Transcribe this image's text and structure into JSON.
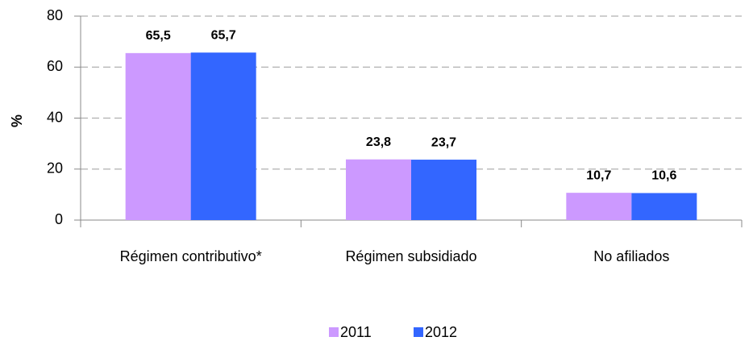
{
  "chart_data": {
    "type": "bar",
    "categories": [
      "Régimen contributivo*",
      "Régimen subsidiado",
      "No afiliados"
    ],
    "series": [
      {
        "name": "2011",
        "color": "#cc99ff",
        "values": [
          65.5,
          23.8,
          10.7
        ],
        "value_labels": [
          "65,5",
          "23,8",
          "10,7"
        ]
      },
      {
        "name": "2012",
        "color": "#3366ff",
        "values": [
          65.7,
          23.7,
          10.6
        ],
        "value_labels": [
          "65,7",
          "23,7",
          "10,6"
        ]
      }
    ],
    "y_label": "%",
    "ylim": [
      0,
      80
    ],
    "yticks": [
      0,
      20,
      40,
      60,
      80
    ],
    "grid": true,
    "legend": "bottom"
  }
}
